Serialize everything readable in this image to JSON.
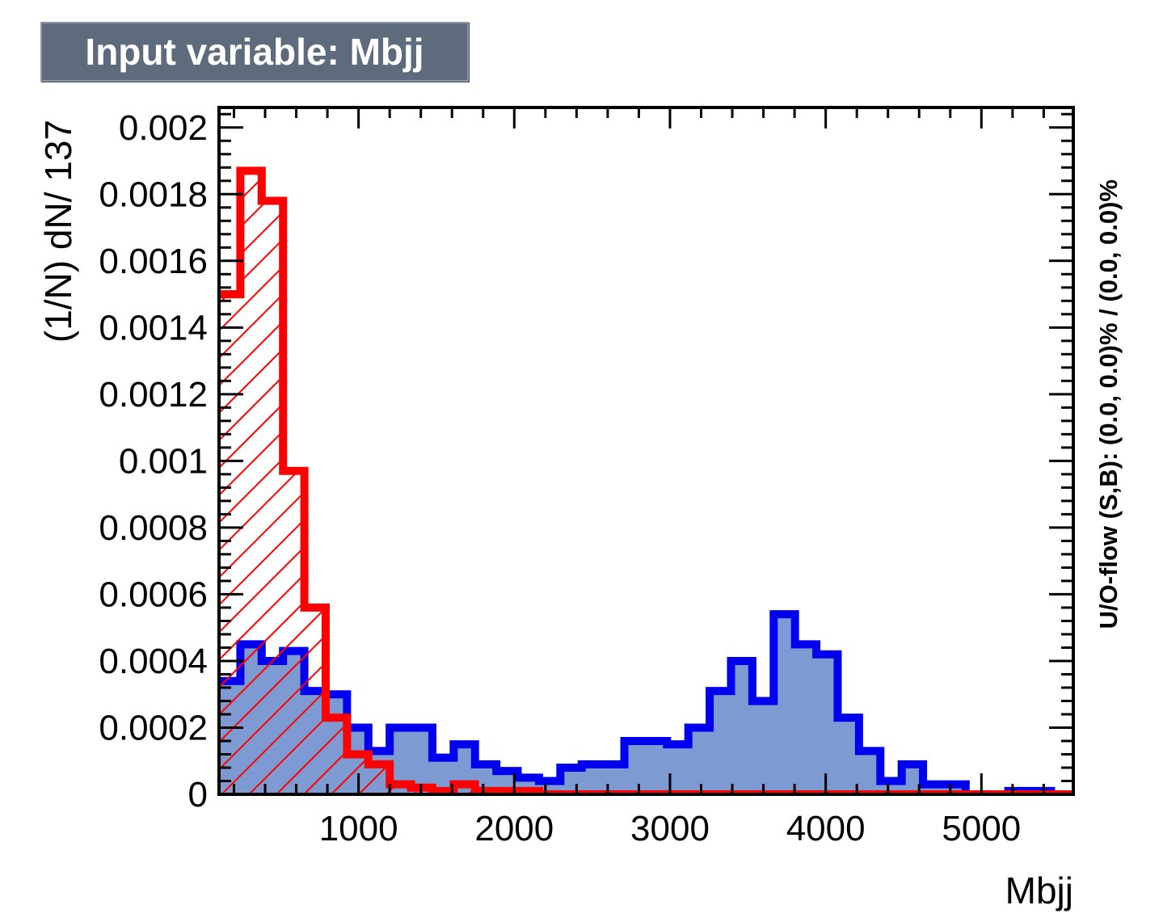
{
  "title": "Input variable: Mbjj",
  "chart_data": {
    "type": "histogram",
    "xlabel": "Mbjj",
    "ylabel": "(1/N) dN/ 137",
    "right_label": "U/O-flow (S,B): (0.0, 0.0)% / (0.0, 0.0)%",
    "xlim": [
      104,
      5590
    ],
    "ylim": [
      0,
      0.00206
    ],
    "x_ticks": [
      1000,
      2000,
      3000,
      4000,
      5000
    ],
    "y_ticks": [
      0,
      0.0002,
      0.0004,
      0.0006,
      0.0008,
      0.001,
      0.0012,
      0.0014,
      0.0016,
      0.0018,
      0.002
    ],
    "y_tick_labels": [
      "0",
      "0.0002",
      "0.0004",
      "0.0006",
      "0.0008",
      "0.001",
      "0.0012",
      "0.0014",
      "0.0016",
      "0.0018",
      "0.002"
    ],
    "bin_width": 137,
    "series": [
      {
        "color": "#0000ee",
        "fill": "#7d9ad2",
        "style": "solid-fill",
        "values": [
          0.00034,
          0.00045,
          0.0004,
          0.00043,
          0.00031,
          0.0003,
          0.0002,
          0.00013,
          0.0002,
          0.0002,
          0.00011,
          0.00015,
          9e-05,
          7e-05,
          5e-05,
          4e-05,
          8e-05,
          9e-05,
          9e-05,
          0.00016,
          0.00016,
          0.00015,
          0.0002,
          0.00031,
          0.0004,
          0.00028,
          0.00054,
          0.00045,
          0.00042,
          0.00023,
          0.00013,
          4e-05,
          9e-05,
          3e-05,
          3e-05,
          0.0,
          0.0,
          1e-05,
          1e-05,
          0.0
        ]
      },
      {
        "color": "#ff0000",
        "fill": "#ff0000",
        "style": "hatched",
        "values": [
          0.0015,
          0.00187,
          0.00178,
          0.00097,
          0.00056,
          0.00023,
          0.00012,
          9e-05,
          3e-05,
          2e-05,
          1e-05,
          3e-05,
          1e-05,
          1e-05,
          1e-05,
          0.0,
          0.0,
          0.0,
          0.0,
          0.0,
          0.0,
          0.0,
          0.0,
          0.0,
          0.0,
          0.0,
          0.0,
          0.0,
          0.0,
          0.0,
          0.0,
          0.0,
          0.0,
          0.0,
          0.0,
          0.0,
          0.0,
          0.0,
          0.0,
          0.0
        ]
      }
    ]
  }
}
